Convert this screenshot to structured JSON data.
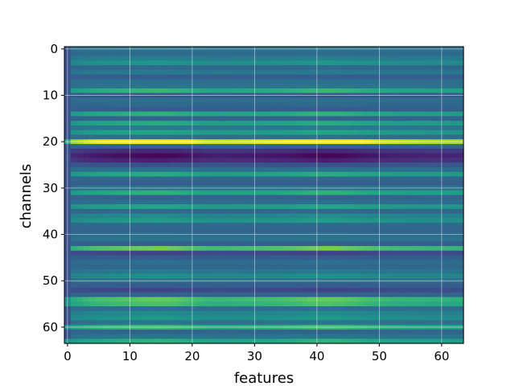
{
  "chart_data": {
    "type": "heatmap",
    "title": "",
    "xlabel": "features",
    "ylabel": "channels",
    "colormap": "viridis",
    "grid": true,
    "n_rows": 64,
    "n_cols": 64,
    "xlim": [
      -0.5,
      63.5
    ],
    "ylim": [
      63.5,
      -0.5
    ],
    "y_inverted": true,
    "x_ticks": [
      0,
      10,
      20,
      30,
      40,
      50,
      60
    ],
    "y_ticks": [
      0,
      10,
      20,
      30,
      40,
      50,
      60
    ],
    "x_tick_labels": [
      "0",
      "10",
      "20",
      "30",
      "40",
      "50",
      "60"
    ],
    "y_tick_labels": [
      "0",
      "10",
      "20",
      "30",
      "40",
      "50",
      "60"
    ],
    "value_range": [
      0,
      1
    ],
    "column_profile": [
      0.74,
      0.8,
      0.86,
      0.92,
      0.97,
      1.0,
      1.02,
      1.04,
      1.06,
      1.08,
      1.1,
      1.12,
      1.14,
      1.15,
      1.16,
      1.16,
      1.15,
      1.13,
      1.1,
      1.06,
      1.02,
      0.98,
      0.95,
      0.93,
      0.92,
      0.92,
      0.93,
      0.94,
      0.95,
      0.96,
      0.97,
      0.98,
      0.99,
      1.0,
      1.01,
      1.03,
      1.05,
      1.08,
      1.11,
      1.14,
      1.16,
      1.17,
      1.17,
      1.16,
      1.14,
      1.11,
      1.08,
      1.05,
      1.02,
      0.99,
      0.96,
      0.94,
      0.92,
      0.91,
      0.9,
      0.89,
      0.88,
      0.87,
      0.86,
      0.86,
      0.85,
      0.85,
      0.84,
      0.84
    ],
    "row_levels": [
      0.38,
      0.35,
      0.42,
      0.5,
      0.34,
      0.4,
      0.3,
      0.36,
      0.38,
      0.62,
      0.28,
      0.36,
      0.34,
      0.3,
      0.6,
      0.32,
      0.58,
      0.4,
      0.56,
      0.36,
      0.97,
      0.32,
      0.14,
      0.06,
      0.12,
      0.26,
      0.36,
      0.58,
      0.34,
      0.3,
      0.38,
      0.6,
      0.32,
      0.36,
      0.56,
      0.34,
      0.46,
      0.52,
      0.34,
      0.32,
      0.36,
      0.38,
      0.3,
      0.72,
      0.22,
      0.3,
      0.36,
      0.34,
      0.4,
      0.48,
      0.36,
      0.3,
      0.22,
      0.32,
      0.7,
      0.66,
      0.36,
      0.46,
      0.5,
      0.38,
      0.64,
      0.32,
      0.38,
      0.6
    ],
    "first_column_values": [
      0.25,
      0.25,
      0.25,
      0.25,
      0.25,
      0.25,
      0.25,
      0.25,
      0.25,
      0.25,
      0.25,
      0.25,
      0.25,
      0.25,
      0.25,
      0.25,
      0.25,
      0.25,
      0.25,
      0.25,
      0.6,
      0.25,
      0.25,
      0.25,
      0.25,
      0.25,
      0.25,
      0.25,
      0.25,
      0.25,
      0.25,
      0.25,
      0.25,
      0.25,
      0.25,
      0.25,
      0.25,
      0.25,
      0.25,
      0.25,
      0.25,
      0.25,
      0.25,
      0.25,
      0.25,
      0.25,
      0.25,
      0.25,
      0.25,
      0.25,
      0.25,
      0.25,
      0.25,
      0.25,
      0.5,
      0.5,
      0.25,
      0.25,
      0.25,
      0.25,
      0.5,
      0.25,
      0.25,
      0.5
    ]
  }
}
